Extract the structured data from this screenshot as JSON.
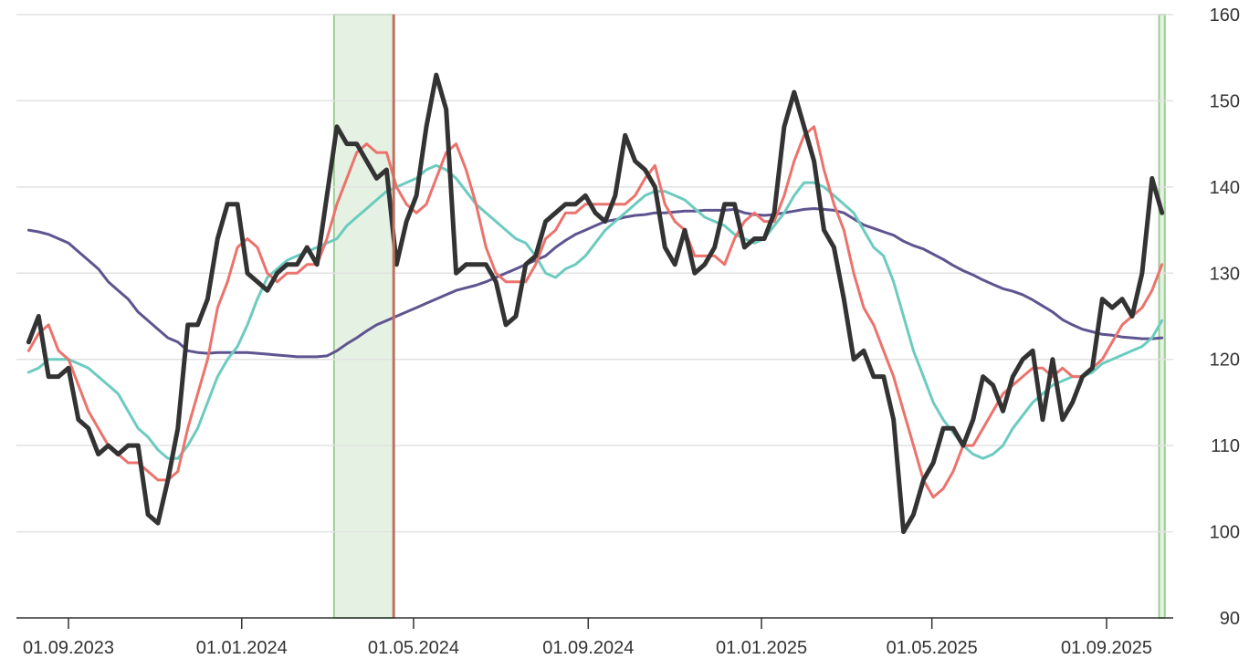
{
  "chart_data": {
    "type": "line",
    "title": "",
    "xlabel": "",
    "ylabel": "",
    "ylim": [
      90,
      160
    ],
    "y_ticks": [
      "90",
      "100",
      "110",
      "120",
      "130",
      "140",
      "150",
      "160"
    ],
    "y_axis_position": "right",
    "x_ticks": [
      {
        "date": "2023-09-01",
        "label": "01.09.2023"
      },
      {
        "date": "2024-01-01",
        "label": "01.01.2024"
      },
      {
        "date": "2024-05-01",
        "label": "01.05.2024"
      },
      {
        "date": "2024-09-01",
        "label": "01.09.2024"
      },
      {
        "date": "2025-01-01",
        "label": "01.01.2025"
      },
      {
        "date": "2025-05-01",
        "label": "01.05.2025"
      },
      {
        "date": "2025-09-01",
        "label": "01.09.2025"
      }
    ],
    "xlim": [
      "2023-08-01",
      "2025-10-20"
    ],
    "grid": true,
    "highlight_ranges": [
      {
        "start": "2024-03-06",
        "end": "2024-04-17",
        "color": "#e5f2e3",
        "border": "#9ccc94"
      },
      {
        "start": "2025-10-08",
        "end": "2025-10-12",
        "color": "#e5f2e3",
        "border": "#9ccc94"
      }
    ],
    "markers": [
      {
        "date": "2024-04-17",
        "color": "#c0705f"
      }
    ],
    "dates": [
      "2023-08-04",
      "2023-08-11",
      "2023-08-18",
      "2023-08-25",
      "2023-09-01",
      "2023-09-08",
      "2023-09-15",
      "2023-09-22",
      "2023-09-29",
      "2023-10-06",
      "2023-10-13",
      "2023-10-20",
      "2023-10-27",
      "2023-11-03",
      "2023-11-10",
      "2023-11-17",
      "2023-11-24",
      "2023-12-01",
      "2023-12-08",
      "2023-12-15",
      "2023-12-22",
      "2023-12-29",
      "2024-01-05",
      "2024-01-12",
      "2024-01-19",
      "2024-01-26",
      "2024-02-02",
      "2024-02-09",
      "2024-02-16",
      "2024-02-23",
      "2024-03-01",
      "2024-03-08",
      "2024-03-15",
      "2024-03-22",
      "2024-03-29",
      "2024-04-05",
      "2024-04-12",
      "2024-04-19",
      "2024-04-26",
      "2024-05-03",
      "2024-05-10",
      "2024-05-17",
      "2024-05-24",
      "2024-05-31",
      "2024-06-07",
      "2024-06-14",
      "2024-06-21",
      "2024-06-28",
      "2024-07-05",
      "2024-07-12",
      "2024-07-19",
      "2024-07-26",
      "2024-08-02",
      "2024-08-09",
      "2024-08-16",
      "2024-08-23",
      "2024-08-30",
      "2024-09-06",
      "2024-09-13",
      "2024-09-20",
      "2024-09-27",
      "2024-10-04",
      "2024-10-11",
      "2024-10-18",
      "2024-10-25",
      "2024-11-01",
      "2024-11-08",
      "2024-11-15",
      "2024-11-22",
      "2024-11-29",
      "2024-12-06",
      "2024-12-13",
      "2024-12-20",
      "2024-12-27",
      "2025-01-03",
      "2025-01-10",
      "2025-01-17",
      "2025-01-24",
      "2025-01-31",
      "2025-02-07",
      "2025-02-14",
      "2025-02-21",
      "2025-02-28",
      "2025-03-07",
      "2025-03-14",
      "2025-03-21",
      "2025-03-28",
      "2025-04-04",
      "2025-04-11",
      "2025-04-18",
      "2025-04-25",
      "2025-05-02",
      "2025-05-09",
      "2025-05-16",
      "2025-05-23",
      "2025-05-30",
      "2025-06-06",
      "2025-06-13",
      "2025-06-20",
      "2025-06-27",
      "2025-07-04",
      "2025-07-11",
      "2025-07-18",
      "2025-07-25",
      "2025-08-01",
      "2025-08-08",
      "2025-08-15",
      "2025-08-22",
      "2025-08-29",
      "2025-09-05",
      "2025-09-12",
      "2025-09-19",
      "2025-09-26",
      "2025-10-03",
      "2025-10-10"
    ],
    "series": [
      {
        "color": "#5e5490",
        "width": 3,
        "values": [
          135,
          134.8,
          134.5,
          134,
          133.5,
          132.5,
          131.5,
          130.5,
          129,
          128,
          127,
          125.5,
          124.5,
          123.5,
          122.5,
          122,
          121,
          120.8,
          120.7,
          120.8,
          120.8,
          120.8,
          120.8,
          120.7,
          120.6,
          120.5,
          120.4,
          120.3,
          120.3,
          120.3,
          120.4,
          121,
          121.8,
          122.5,
          123.3,
          124,
          124.5,
          125,
          125.5,
          126,
          126.5,
          127,
          127.5,
          128,
          128.3,
          128.6,
          129,
          129.5,
          130,
          130.5,
          131,
          131.5,
          132,
          133,
          133.8,
          134.5,
          135,
          135.5,
          136,
          136.2,
          136.5,
          136.7,
          136.8,
          137,
          137,
          137.1,
          137.2,
          137.2,
          137.3,
          137.3,
          137.3,
          137.4,
          137,
          136.8,
          136.7,
          136.8,
          137,
          137.2,
          137.4,
          137.5,
          137.4,
          137.3,
          137,
          136.3,
          135.6,
          135.2,
          134.8,
          134.4,
          133.7,
          133.2,
          132.8,
          132.2,
          131.6,
          130.9,
          130.3,
          129.8,
          129.2,
          128.7,
          128.2,
          127.9,
          127.5,
          126.9,
          126.2,
          125.5,
          124.6,
          124,
          123.5,
          123.2,
          122.9,
          122.8,
          122.6,
          122.5,
          122.4,
          122.4,
          122.5
        ]
      },
      {
        "color": "#6ccbbf",
        "width": 3,
        "values": [
          118.5,
          119,
          120,
          120,
          120,
          119.5,
          119,
          118,
          117,
          116,
          114,
          112,
          111,
          109.5,
          108.5,
          108.5,
          110,
          112,
          115,
          118,
          120,
          121.5,
          124,
          127,
          129.5,
          130.5,
          131.5,
          132,
          132.5,
          133,
          133.5,
          134,
          135.5,
          136.5,
          137.5,
          138.5,
          139.5,
          140,
          140.5,
          141,
          142,
          142.5,
          142,
          141,
          139.5,
          138,
          137,
          136,
          135,
          134,
          133.5,
          132,
          130,
          129.5,
          130.5,
          131,
          132,
          133.5,
          135,
          136,
          137,
          138,
          139,
          139.5,
          139.5,
          139,
          138.5,
          137.5,
          136.5,
          136,
          135.5,
          134.5,
          134,
          133.5,
          134,
          135.5,
          137,
          139,
          140.5,
          140.5,
          140,
          139,
          138,
          137,
          135,
          133,
          132,
          129,
          125,
          121,
          118,
          115,
          113,
          111.5,
          110,
          109,
          108.5,
          109,
          110,
          112,
          113.5,
          115,
          116,
          117,
          117.5,
          118,
          118,
          118.5,
          119.5,
          120,
          120.5,
          121,
          121.5,
          122.5,
          124.5
        ]
      },
      {
        "color": "#ec726c",
        "width": 3,
        "values": [
          121,
          123,
          124,
          121,
          120,
          117,
          114,
          112,
          110,
          109,
          108,
          108,
          107,
          106,
          106,
          107,
          112,
          116,
          120,
          126,
          129,
          133,
          134,
          133,
          130,
          129,
          130,
          130,
          131,
          131,
          134,
          138,
          141,
          144,
          145,
          144,
          144,
          140,
          138,
          137,
          138,
          141,
          144,
          145,
          142,
          138,
          133,
          130,
          129,
          129,
          129,
          131,
          134,
          135,
          137,
          137,
          138,
          138,
          138,
          138,
          138,
          139,
          141,
          142.5,
          138,
          136,
          135,
          132,
          132,
          132,
          131,
          134,
          136,
          137,
          136,
          136,
          139,
          143,
          146,
          147,
          142,
          138,
          135,
          130,
          126,
          124,
          121,
          118,
          114,
          110,
          106,
          104,
          105,
          107,
          110,
          110,
          112,
          114,
          116,
          117,
          118,
          119,
          119,
          118,
          119,
          118,
          118,
          119,
          120,
          122,
          124,
          125,
          126,
          128,
          131
        ]
      },
      {
        "color": "#333333",
        "width": 5,
        "values": [
          122,
          125,
          118,
          118,
          119,
          113,
          112,
          109,
          110,
          109,
          110,
          110,
          102,
          101,
          106,
          112,
          124,
          124,
          127,
          134,
          138,
          138,
          130,
          129,
          128,
          130,
          131,
          131,
          133,
          131,
          139,
          147,
          145,
          145,
          143,
          141,
          142,
          131,
          136,
          139,
          147,
          153,
          149,
          130,
          131,
          131,
          131,
          129,
          124,
          125,
          131,
          132,
          136,
          137,
          138,
          138,
          139,
          137,
          136,
          139,
          146,
          143,
          142,
          140,
          133,
          131,
          135,
          130,
          131,
          133,
          138,
          138,
          133,
          134,
          134,
          137,
          147,
          151,
          147,
          143,
          135,
          133,
          127,
          120,
          121,
          118,
          118,
          113,
          100,
          102,
          106,
          108,
          112,
          112,
          110,
          113,
          118,
          117,
          114,
          118,
          120,
          121,
          113,
          120,
          113,
          115,
          118,
          119,
          127,
          126,
          127,
          125,
          130,
          141,
          137
        ]
      }
    ]
  }
}
